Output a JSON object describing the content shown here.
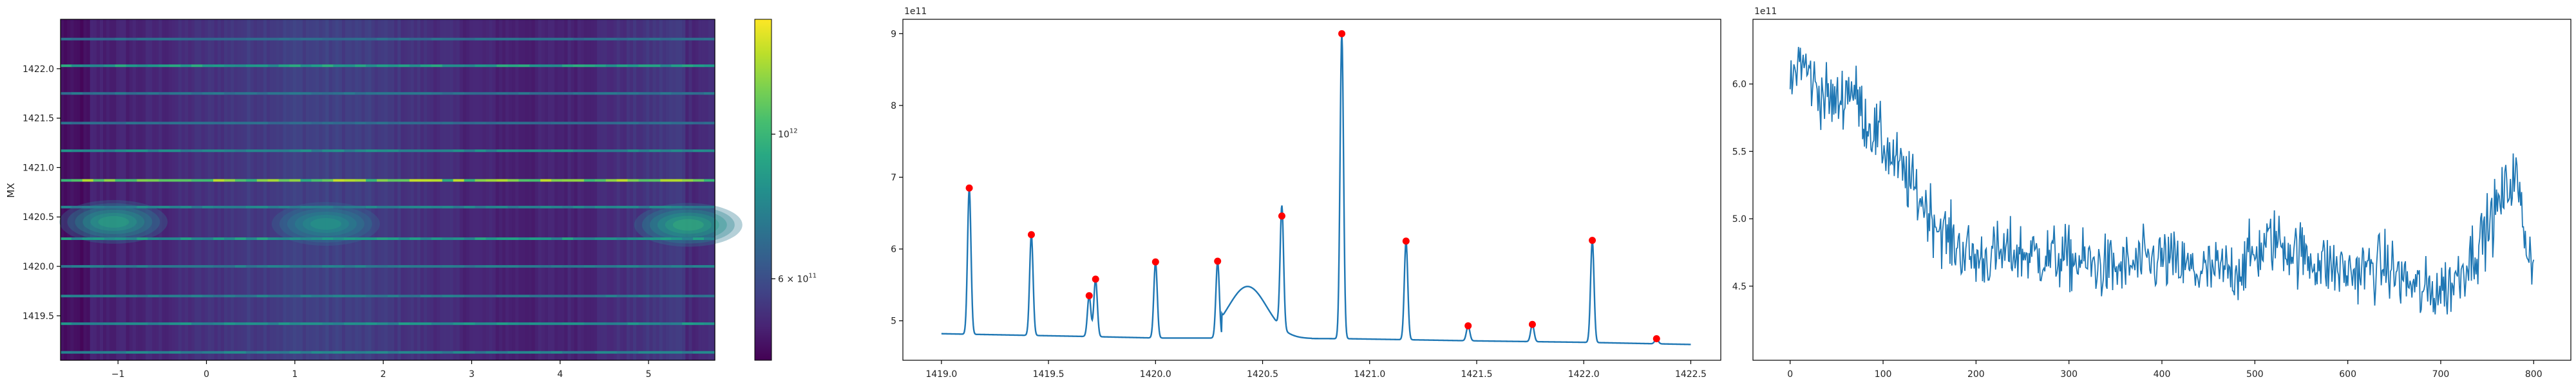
{
  "figure": {
    "panels": [
      "spectrogram",
      "line-with-peaks",
      "line"
    ]
  },
  "chart_data": [
    {
      "type": "heatmap",
      "title": "",
      "xlabel": "",
      "ylabel": "MX",
      "xlim": [
        -1.65,
        5.75
      ],
      "ylim": [
        1419.05,
        1422.5
      ],
      "xticks": [
        -1,
        0,
        1,
        2,
        3,
        4,
        5
      ],
      "xtick_labels": [
        "−1",
        "0",
        "1",
        "2",
        "3",
        "4",
        "5"
      ],
      "yticks": [
        1419.5,
        1420.0,
        1420.5,
        1421.0,
        1421.5,
        1422.0
      ],
      "ytick_labels": [
        "1419.5",
        "1420.0",
        "1420.5",
        "1421.0",
        "1421.5",
        "1422.0"
      ],
      "colormap": "viridis",
      "colorbar": {
        "scale": "log",
        "range": [
          450000000000,
          1500000000000
        ],
        "ticks": [
          {
            "value": 1000000000000,
            "label": "10",
            "sup": "12",
            "prefix": ""
          },
          {
            "value": 600000000000,
            "label": "6 × 10",
            "sup": "11",
            "prefix": ""
          }
        ]
      },
      "horizontal_lines": [
        {
          "y": 1419.13,
          "strength": 0.35
        },
        {
          "y": 1419.42,
          "strength": 0.45
        },
        {
          "y": 1419.7,
          "strength": 0.3
        },
        {
          "y": 1420.0,
          "strength": 0.3
        },
        {
          "y": 1420.28,
          "strength": 0.5
        },
        {
          "y": 1420.6,
          "strength": 0.35
        },
        {
          "y": 1420.87,
          "strength": 0.95
        },
        {
          "y": 1421.17,
          "strength": 0.4
        },
        {
          "y": 1421.45,
          "strength": 0.2
        },
        {
          "y": 1421.75,
          "strength": 0.25
        },
        {
          "y": 1422.03,
          "strength": 0.55
        },
        {
          "y": 1422.3,
          "strength": 0.2
        }
      ],
      "blobs": [
        {
          "x": -1.05,
          "y": 1420.45,
          "value": 0.65
        },
        {
          "x": 1.35,
          "y": 1420.43,
          "value": 0.6
        },
        {
          "x": 5.45,
          "y": 1420.42,
          "value": 0.7
        }
      ]
    },
    {
      "type": "line",
      "title": "",
      "xlabel": "",
      "ylabel": "",
      "offset_text": "1e11",
      "xlim": [
        1418.82,
        1422.64
      ],
      "ylim": [
        4.45,
        9.2
      ],
      "xticks": [
        1419.0,
        1419.5,
        1420.0,
        1420.5,
        1421.0,
        1421.5,
        1422.0,
        1422.5
      ],
      "xtick_labels": [
        "1419.0",
        "1419.5",
        "1420.0",
        "1420.5",
        "1421.0",
        "1421.5",
        "1422.0",
        "1422.5"
      ],
      "yticks": [
        5,
        6,
        7,
        8,
        9
      ],
      "ytick_labels": [
        "5",
        "6",
        "7",
        "8",
        "9"
      ],
      "baseline": [
        [
          1419.0,
          4.82
        ],
        [
          1419.7,
          4.78
        ],
        [
          1420.0,
          4.76
        ],
        [
          1420.3,
          4.76
        ],
        [
          1420.9,
          4.75
        ],
        [
          1421.5,
          4.72
        ],
        [
          1422.0,
          4.7
        ],
        [
          1422.5,
          4.67
        ]
      ],
      "bump": {
        "center": 1420.43,
        "width": 0.09,
        "height": 0.72
      },
      "peaks": [
        {
          "x": 1419.13,
          "y": 6.85
        },
        {
          "x": 1419.42,
          "y": 6.2
        },
        {
          "x": 1419.69,
          "y": 5.35
        },
        {
          "x": 1419.72,
          "y": 5.58
        },
        {
          "x": 1420.0,
          "y": 5.82
        },
        {
          "x": 1420.29,
          "y": 5.83
        },
        {
          "x": 1420.59,
          "y": 6.46
        },
        {
          "x": 1420.87,
          "y": 9.0
        },
        {
          "x": 1421.17,
          "y": 6.11
        },
        {
          "x": 1421.46,
          "y": 4.93
        },
        {
          "x": 1421.76,
          "y": 4.95
        },
        {
          "x": 1422.04,
          "y": 6.12
        },
        {
          "x": 1422.34,
          "y": 4.75
        }
      ]
    },
    {
      "type": "line",
      "title": "",
      "xlabel": "",
      "ylabel": "",
      "offset_text": "1e11",
      "xlim": [
        -40,
        840
      ],
      "ylim": [
        3.95,
        6.48
      ],
      "xticks": [
        0,
        100,
        200,
        300,
        400,
        500,
        600,
        700,
        800
      ],
      "xtick_labels": [
        "0",
        "100",
        "200",
        "300",
        "400",
        "500",
        "600",
        "700",
        "800"
      ],
      "yticks": [
        4.5,
        5.0,
        5.5,
        6.0
      ],
      "ytick_labels": [
        "4.5",
        "5.0",
        "5.5",
        "6.0"
      ],
      "n_points": 801,
      "trend": [
        [
          0,
          5.95
        ],
        [
          10,
          6.2
        ],
        [
          30,
          5.95
        ],
        [
          50,
          5.85
        ],
        [
          65,
          6.0
        ],
        [
          80,
          5.75
        ],
        [
          110,
          5.45
        ],
        [
          140,
          5.15
        ],
        [
          170,
          4.85
        ],
        [
          200,
          4.7
        ],
        [
          240,
          4.75
        ],
        [
          300,
          4.7
        ],
        [
          350,
          4.62
        ],
        [
          400,
          4.7
        ],
        [
          440,
          4.6
        ],
        [
          480,
          4.62
        ],
        [
          520,
          4.85
        ],
        [
          560,
          4.7
        ],
        [
          600,
          4.6
        ],
        [
          640,
          4.65
        ],
        [
          680,
          4.45
        ],
        [
          710,
          4.5
        ],
        [
          740,
          4.8
        ],
        [
          770,
          5.2
        ],
        [
          780,
          5.35
        ],
        [
          790,
          4.9
        ],
        [
          800,
          4.65
        ]
      ],
      "noise": 0.12
    }
  ]
}
